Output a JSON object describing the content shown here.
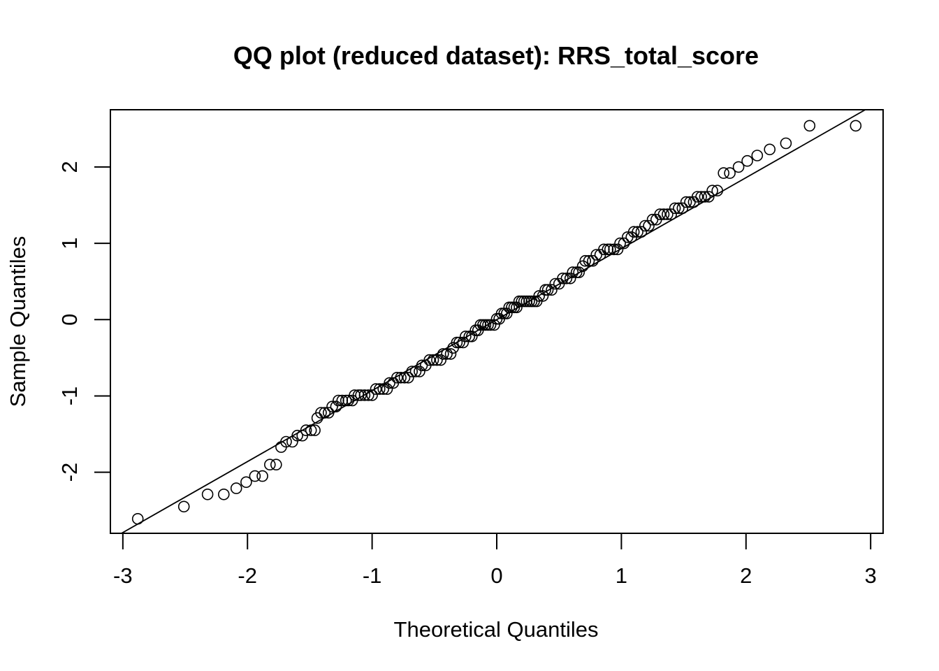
{
  "chart_data": {
    "type": "scatter",
    "title": "QQ plot (reduced dataset): RRS_total_score",
    "xlabel": "Theoretical Quantiles",
    "ylabel": "Sample Quantiles",
    "xlim": [
      -3.1,
      3.1
    ],
    "ylim": [
      -2.8,
      2.75
    ],
    "grid": false,
    "x_ticks": [
      -3,
      -2,
      -1,
      0,
      1,
      2,
      3
    ],
    "x_tick_labels": [
      "-3",
      "-2",
      "-1",
      "0",
      "1",
      "2",
      "3"
    ],
    "y_ticks": [
      -2,
      -1,
      0,
      1,
      2
    ],
    "y_tick_labels": [
      "-2",
      "-1",
      "0",
      "1",
      "2"
    ],
    "reference_line": {
      "slope": 0.93,
      "intercept": 0.0
    },
    "points": [
      [
        -2.88,
        -2.61
      ],
      [
        -2.51,
        -2.45
      ],
      [
        -2.32,
        -2.29
      ],
      [
        -2.19,
        -2.29
      ],
      [
        -2.09,
        -2.21
      ],
      [
        -2.01,
        -2.13
      ],
      [
        -1.94,
        -2.05
      ],
      [
        -1.88,
        -2.05
      ],
      [
        -1.82,
        -1.9
      ],
      [
        -1.77,
        -1.9
      ],
      [
        -1.73,
        -1.67
      ],
      [
        -1.69,
        -1.6
      ],
      [
        -1.64,
        -1.6
      ],
      [
        -1.6,
        -1.52
      ],
      [
        -1.56,
        -1.52
      ],
      [
        -1.53,
        -1.45
      ],
      [
        -1.49,
        -1.45
      ],
      [
        -1.46,
        -1.45
      ],
      [
        -1.44,
        -1.29
      ],
      [
        -1.41,
        -1.22
      ],
      [
        -1.38,
        -1.22
      ],
      [
        -1.35,
        -1.22
      ],
      [
        -1.32,
        -1.14
      ],
      [
        -1.29,
        -1.14
      ],
      [
        -1.27,
        -1.06
      ],
      [
        -1.24,
        -1.06
      ],
      [
        -1.21,
        -1.06
      ],
      [
        -1.19,
        -1.06
      ],
      [
        -1.16,
        -1.06
      ],
      [
        -1.14,
        -0.99
      ],
      [
        -1.11,
        -0.99
      ],
      [
        -1.09,
        -0.99
      ],
      [
        -1.06,
        -0.99
      ],
      [
        -1.03,
        -0.99
      ],
      [
        -1.0,
        -0.99
      ],
      [
        -0.97,
        -0.91
      ],
      [
        -0.94,
        -0.91
      ],
      [
        -0.91,
        -0.91
      ],
      [
        -0.88,
        -0.91
      ],
      [
        -0.86,
        -0.83
      ],
      [
        -0.83,
        -0.83
      ],
      [
        -0.8,
        -0.76
      ],
      [
        -0.77,
        -0.76
      ],
      [
        -0.74,
        -0.76
      ],
      [
        -0.71,
        -0.76
      ],
      [
        -0.68,
        -0.68
      ],
      [
        -0.65,
        -0.68
      ],
      [
        -0.62,
        -0.68
      ],
      [
        -0.6,
        -0.6
      ],
      [
        -0.57,
        -0.6
      ],
      [
        -0.54,
        -0.53
      ],
      [
        -0.51,
        -0.53
      ],
      [
        -0.48,
        -0.53
      ],
      [
        -0.45,
        -0.53
      ],
      [
        -0.43,
        -0.45
      ],
      [
        -0.4,
        -0.45
      ],
      [
        -0.37,
        -0.45
      ],
      [
        -0.35,
        -0.37
      ],
      [
        -0.32,
        -0.3
      ],
      [
        -0.3,
        -0.3
      ],
      [
        -0.27,
        -0.3
      ],
      [
        -0.25,
        -0.22
      ],
      [
        -0.22,
        -0.22
      ],
      [
        -0.2,
        -0.22
      ],
      [
        -0.17,
        -0.14
      ],
      [
        -0.15,
        -0.14
      ],
      [
        -0.13,
        -0.07
      ],
      [
        -0.11,
        -0.07
      ],
      [
        -0.09,
        -0.07
      ],
      [
        -0.07,
        -0.07
      ],
      [
        -0.05,
        -0.07
      ],
      [
        -0.02,
        -0.07
      ],
      [
        0.0,
        0.01
      ],
      [
        0.02,
        0.01
      ],
      [
        0.04,
        0.08
      ],
      [
        0.06,
        0.08
      ],
      [
        0.08,
        0.08
      ],
      [
        0.1,
        0.16
      ],
      [
        0.12,
        0.16
      ],
      [
        0.14,
        0.16
      ],
      [
        0.16,
        0.16
      ],
      [
        0.18,
        0.24
      ],
      [
        0.2,
        0.24
      ],
      [
        0.22,
        0.24
      ],
      [
        0.24,
        0.24
      ],
      [
        0.26,
        0.24
      ],
      [
        0.28,
        0.24
      ],
      [
        0.3,
        0.24
      ],
      [
        0.32,
        0.24
      ],
      [
        0.34,
        0.31
      ],
      [
        0.37,
        0.31
      ],
      [
        0.39,
        0.39
      ],
      [
        0.41,
        0.39
      ],
      [
        0.44,
        0.39
      ],
      [
        0.47,
        0.47
      ],
      [
        0.5,
        0.47
      ],
      [
        0.53,
        0.54
      ],
      [
        0.56,
        0.54
      ],
      [
        0.59,
        0.54
      ],
      [
        0.61,
        0.62
      ],
      [
        0.64,
        0.62
      ],
      [
        0.66,
        0.62
      ],
      [
        0.69,
        0.7
      ],
      [
        0.71,
        0.77
      ],
      [
        0.74,
        0.77
      ],
      [
        0.77,
        0.77
      ],
      [
        0.8,
        0.85
      ],
      [
        0.83,
        0.85
      ],
      [
        0.86,
        0.92
      ],
      [
        0.89,
        0.92
      ],
      [
        0.91,
        0.92
      ],
      [
        0.94,
        0.92
      ],
      [
        0.97,
        0.92
      ],
      [
        0.99,
        1.0
      ],
      [
        1.02,
        1.0
      ],
      [
        1.05,
        1.08
      ],
      [
        1.08,
        1.08
      ],
      [
        1.1,
        1.15
      ],
      [
        1.13,
        1.15
      ],
      [
        1.16,
        1.15
      ],
      [
        1.19,
        1.23
      ],
      [
        1.22,
        1.23
      ],
      [
        1.25,
        1.31
      ],
      [
        1.28,
        1.31
      ],
      [
        1.31,
        1.38
      ],
      [
        1.34,
        1.38
      ],
      [
        1.37,
        1.38
      ],
      [
        1.4,
        1.38
      ],
      [
        1.43,
        1.46
      ],
      [
        1.46,
        1.46
      ],
      [
        1.49,
        1.46
      ],
      [
        1.52,
        1.54
      ],
      [
        1.55,
        1.54
      ],
      [
        1.58,
        1.54
      ],
      [
        1.61,
        1.61
      ],
      [
        1.64,
        1.61
      ],
      [
        1.67,
        1.61
      ],
      [
        1.7,
        1.61
      ],
      [
        1.73,
        1.69
      ],
      [
        1.77,
        1.69
      ],
      [
        1.82,
        1.92
      ],
      [
        1.87,
        1.92
      ],
      [
        1.94,
        2.0
      ],
      [
        2.01,
        2.08
      ],
      [
        2.09,
        2.15
      ],
      [
        2.19,
        2.23
      ],
      [
        2.32,
        2.31
      ],
      [
        2.51,
        2.54
      ],
      [
        2.88,
        2.54
      ]
    ]
  }
}
